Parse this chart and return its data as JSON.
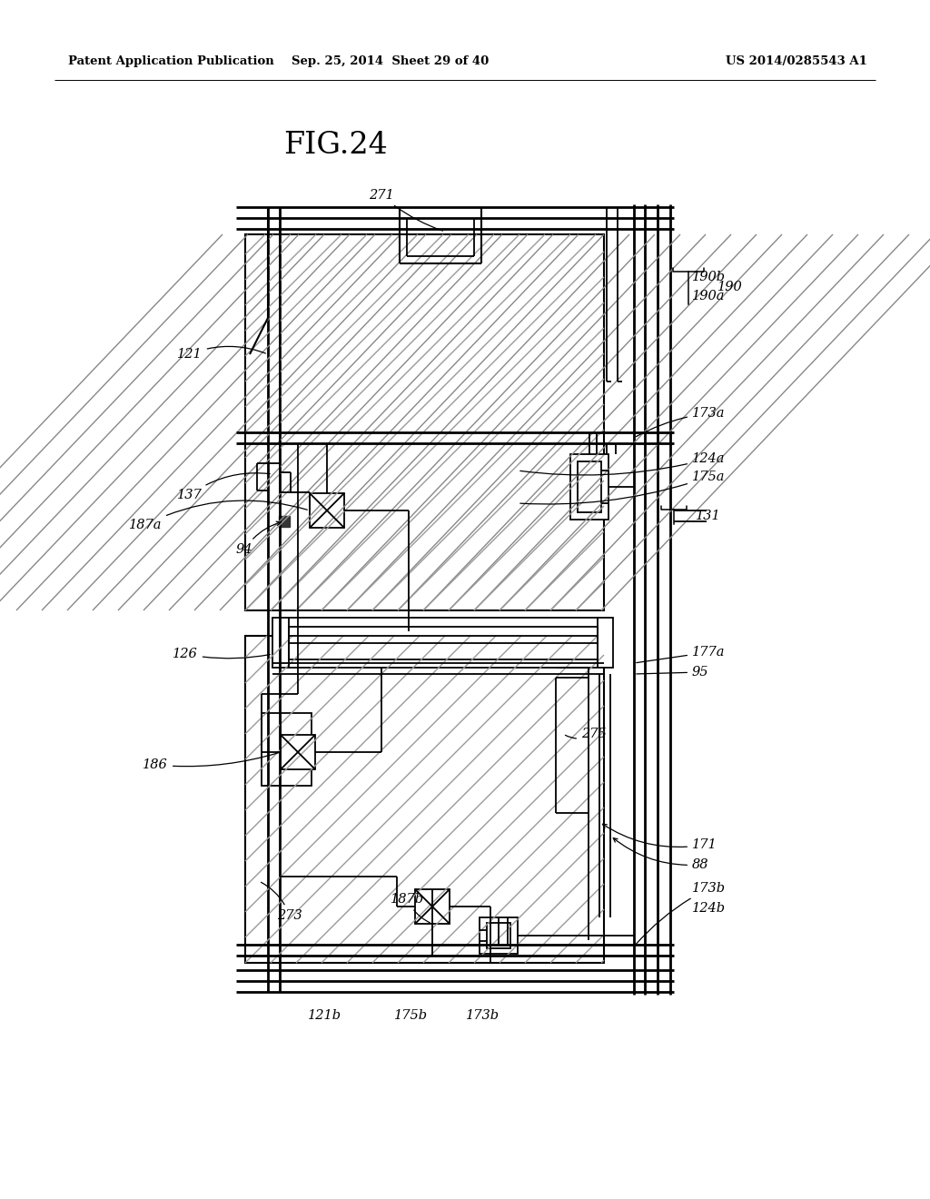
{
  "bg": "#ffffff",
  "lc": "#000000",
  "header_left": "Patent Application Publication",
  "header_center": "Sep. 25, 2014  Sheet 29 of 40",
  "header_right": "US 2014/0285543 A1",
  "title": "FIG.24"
}
